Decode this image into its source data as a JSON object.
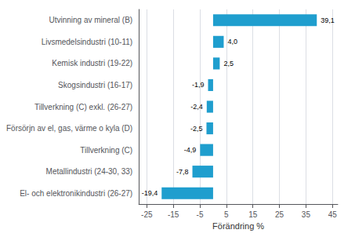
{
  "chart_data": {
    "type": "bar",
    "orientation": "horizontal",
    "categories": [
      "El- och elektronikindustri (26-27)",
      "Metallindustri (24-30, 33)",
      "Tillverkning (C)",
      "Försörjn av el, gas, värme o kyla (D)",
      "Tillverkning (C) exkl. (26-27)",
      "Skogsindustri (16-17)",
      "Kemisk industri (19-22)",
      "Livsmedelsindustri (10-11)",
      "Utvinning av mineral (B)"
    ],
    "values": [
      -19.4,
      -7.8,
      -4.9,
      -2.5,
      -2.4,
      -1.9,
      2.5,
      4.0,
      39.1
    ],
    "value_labels": [
      "-19,4",
      "-7,8",
      "-4,9",
      "-2,5",
      "-2,4",
      "-1,9",
      "2,5",
      "4,0",
      "39,1"
    ],
    "data_labels": true,
    "color": "#1f9ece",
    "xlabel": "Förändring %",
    "xlim": [
      -28,
      47
    ],
    "xticks": [
      -25,
      -15,
      -5,
      5,
      15,
      25,
      35,
      45
    ],
    "grid": true
  }
}
